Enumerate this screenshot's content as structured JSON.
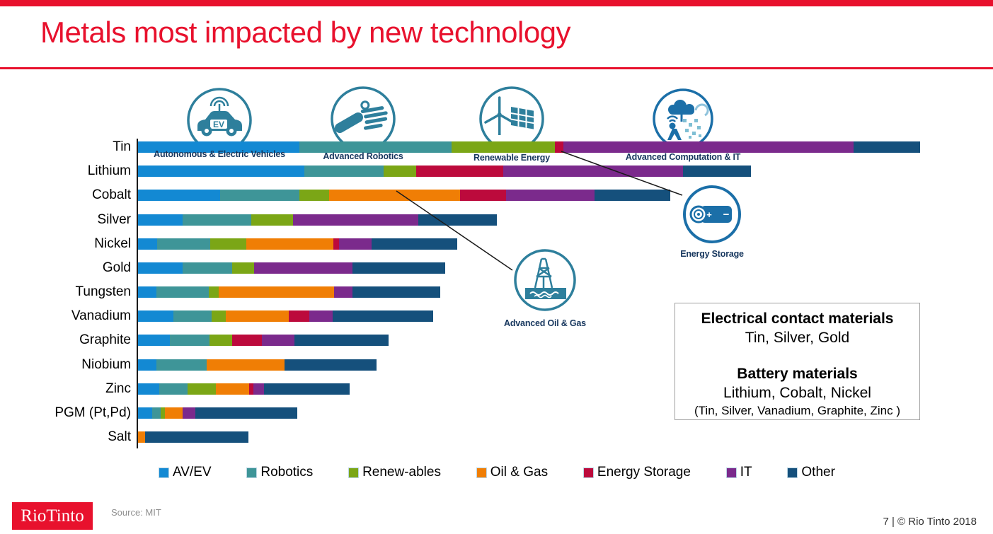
{
  "slide": {
    "title": "Metals most impacted by new technology",
    "footer": {
      "logo_text": "RioTinto",
      "source": "Source: MIT",
      "page_credit": "7 | © Rio Tinto 2018"
    }
  },
  "colors": {
    "accent_red": "#E8112D",
    "av_ev": "#1389D3",
    "robotics": "#3E9598",
    "renewables": "#7BA616",
    "oil_gas": "#F07E05",
    "energy_storage": "#BC0A3C",
    "it": "#7B2A8C",
    "other": "#15507C",
    "icon_teal": "#2E7F9C",
    "icon_blue": "#1B6FA8",
    "icon_label_navy": "#17375E"
  },
  "icons": [
    {
      "name": "autonomous-electric-vehicles-icon",
      "label": "Autonomous & Electric Vehicles"
    },
    {
      "name": "advanced-robotics-icon",
      "label": "Advanced Robotics"
    },
    {
      "name": "renewable-energy-icon",
      "label": "Renewable Energy"
    },
    {
      "name": "advanced-computation-it-icon",
      "label": "Advanced Computation & IT"
    },
    {
      "name": "energy-storage-icon",
      "label": "Energy Storage"
    },
    {
      "name": "advanced-oil-gas-icon",
      "label": "Advanced Oil & Gas"
    }
  ],
  "chart_data": {
    "type": "bar",
    "orientation": "horizontal",
    "stacked": true,
    "title": "",
    "xlabel": "",
    "ylabel": "",
    "axis_note": "no numeric axis shown; values are relative impact widths in screen px",
    "categories": [
      "Tin",
      "Lithium",
      "Cobalt",
      "Silver",
      "Nickel",
      "Gold",
      "Tungsten",
      "Vanadium",
      "Graphite",
      "Niobium",
      "Zinc",
      "PGM (Pt,Pd)",
      "Salt"
    ],
    "series": [
      {
        "name": "AV/EV",
        "color_key": "av_ev",
        "values": [
          228,
          235,
          116,
          63,
          27,
          63,
          26,
          50,
          45,
          26,
          30,
          20,
          0
        ]
      },
      {
        "name": "Robotics",
        "color_key": "robotics",
        "values": [
          215,
          112,
          112,
          97,
          75,
          70,
          74,
          54,
          56,
          71,
          40,
          12,
          0
        ]
      },
      {
        "name": "Renew-ables",
        "color_key": "renewables",
        "values": [
          146,
          46,
          42,
          59,
          51,
          31,
          14,
          20,
          32,
          0,
          40,
          6,
          0
        ]
      },
      {
        "name": "Oil & Gas",
        "color_key": "oil_gas",
        "values": [
          0,
          0,
          185,
          0,
          123,
          0,
          163,
          89,
          0,
          110,
          47,
          25,
          10
        ]
      },
      {
        "name": "Energy Storage",
        "color_key": "energy_storage",
        "values": [
          12,
          123,
          65,
          0,
          8,
          0,
          0,
          29,
          42,
          0,
          6,
          0,
          0
        ]
      },
      {
        "name": "IT",
        "color_key": "it",
        "values": [
          410,
          254,
          125,
          177,
          46,
          139,
          26,
          33,
          46,
          0,
          15,
          18,
          0
        ]
      },
      {
        "name": "Other",
        "color_key": "other",
        "values": [
          94,
          96,
          107,
          111,
          121,
          131,
          124,
          142,
          133,
          130,
          121,
          144,
          146
        ]
      }
    ]
  },
  "legend": {
    "items": [
      {
        "label": "AV/EV",
        "color_key": "av_ev"
      },
      {
        "label": "Robotics",
        "color_key": "robotics"
      },
      {
        "label": "Renew-ables",
        "color_key": "renewables"
      },
      {
        "label": "Oil & Gas",
        "color_key": "oil_gas"
      },
      {
        "label": "Energy Storage",
        "color_key": "energy_storage"
      },
      {
        "label": "IT",
        "color_key": "it"
      },
      {
        "label": "Other",
        "color_key": "other"
      }
    ]
  },
  "callout_box": {
    "title1": "Electrical contact materials",
    "line1": "Tin, Silver, Gold",
    "title2": "Battery materials",
    "line2": "Lithium, Cobalt, Nickel",
    "line3": "(Tin, Silver, Vanadium, Graphite, Zinc )"
  }
}
